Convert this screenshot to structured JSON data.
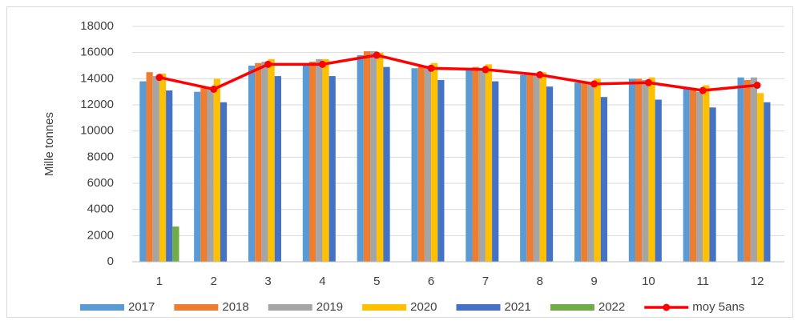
{
  "chart_data": {
    "type": "bar",
    "y_label": "Mille tonnes",
    "categories": [
      "1",
      "2",
      "3",
      "4",
      "5",
      "6",
      "7",
      "8",
      "9",
      "10",
      "11",
      "12"
    ],
    "ylim": [
      0,
      18000
    ],
    "yticks": [
      0,
      2000,
      4000,
      6000,
      8000,
      10000,
      12000,
      14000,
      16000,
      18000
    ],
    "grid": true,
    "series": [
      {
        "name": "2017",
        "color": "#5b9bd5",
        "values": [
          13800,
          13000,
          15000,
          15100,
          15800,
          14800,
          14700,
          14300,
          13700,
          14000,
          13300,
          14100
        ]
      },
      {
        "name": "2018",
        "color": "#ed7d31",
        "values": [
          14500,
          13300,
          15200,
          15300,
          16100,
          15000,
          14900,
          14400,
          13700,
          14000,
          13300,
          13900
        ]
      },
      {
        "name": "2019",
        "color": "#a5a5a5",
        "values": [
          14200,
          13300,
          15300,
          15500,
          16100,
          15000,
          14700,
          14300,
          13600,
          13900,
          13000,
          14100
        ]
      },
      {
        "name": "2020",
        "color": "#ffc000",
        "values": [
          14400,
          14000,
          15500,
          15500,
          16000,
          15200,
          15100,
          14500,
          14000,
          14100,
          13500,
          12900
        ]
      },
      {
        "name": "2021",
        "color": "#4472c4",
        "values": [
          13100,
          12200,
          14200,
          14200,
          14900,
          13900,
          13800,
          13400,
          12600,
          12400,
          11800,
          12200
        ]
      },
      {
        "name": "2022",
        "color": "#70ad47",
        "values": [
          2700,
          null,
          null,
          null,
          null,
          null,
          null,
          null,
          null,
          null,
          null,
          null
        ]
      },
      {
        "name": "moy 5ans",
        "color": "#ff0000",
        "type": "line",
        "values": [
          14100,
          13200,
          15100,
          15100,
          15800,
          14800,
          14700,
          14300,
          13600,
          13700,
          13100,
          13500
        ]
      }
    ]
  }
}
